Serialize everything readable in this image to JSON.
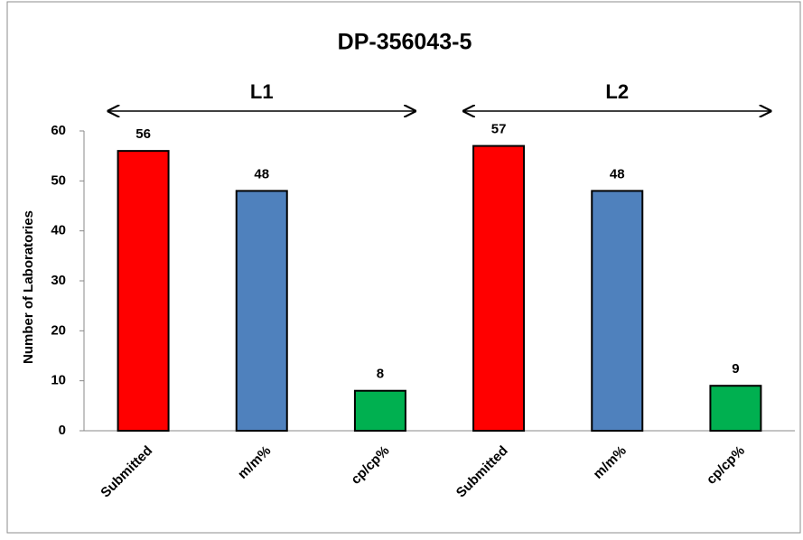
{
  "chart_data": {
    "type": "bar",
    "title": "DP-356043-5",
    "y_label": "Number of Laboratories",
    "groups": [
      "L1",
      "L2"
    ],
    "categories": [
      "Submitted",
      "m/m%",
      "cp/cp%",
      "Submitted",
      "m/m%",
      "cp/cp%"
    ],
    "values": [
      56,
      48,
      8,
      57,
      48,
      9
    ],
    "colors": [
      "#ff0000",
      "#4f81bd",
      "#00b050",
      "#ff0000",
      "#4f81bd",
      "#00b050"
    ],
    "ylim": [
      0,
      60
    ],
    "yticks": [
      0,
      10,
      20,
      30,
      40,
      50,
      60
    ],
    "grid": false
  }
}
